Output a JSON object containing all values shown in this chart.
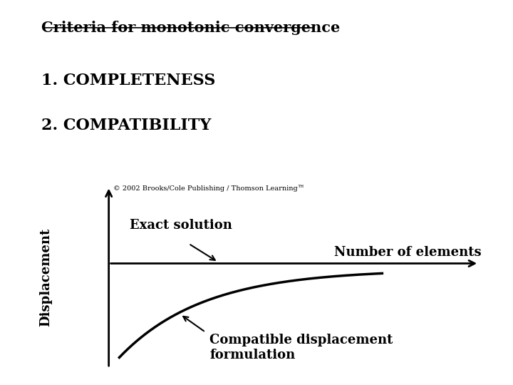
{
  "title": "Criteria for monotonic convergence",
  "item1": "1. COMPLETENESS",
  "item2": "2. COMPATIBILITY",
  "copyright": "© 2002 Brooks/Cole Publishing / Thomson Learning™",
  "ylabel": "Displacement",
  "xlabel": "Number of elements",
  "exact_label": "Exact solution",
  "compat_label": "Compatible displacement\nformulation",
  "bg_color": "#ffffff",
  "text_color": "#000000",
  "title_fontsize": 15,
  "items_fontsize": 16,
  "copyright_fontsize": 7,
  "axis_label_fontsize": 13,
  "annotation_fontsize": 13
}
